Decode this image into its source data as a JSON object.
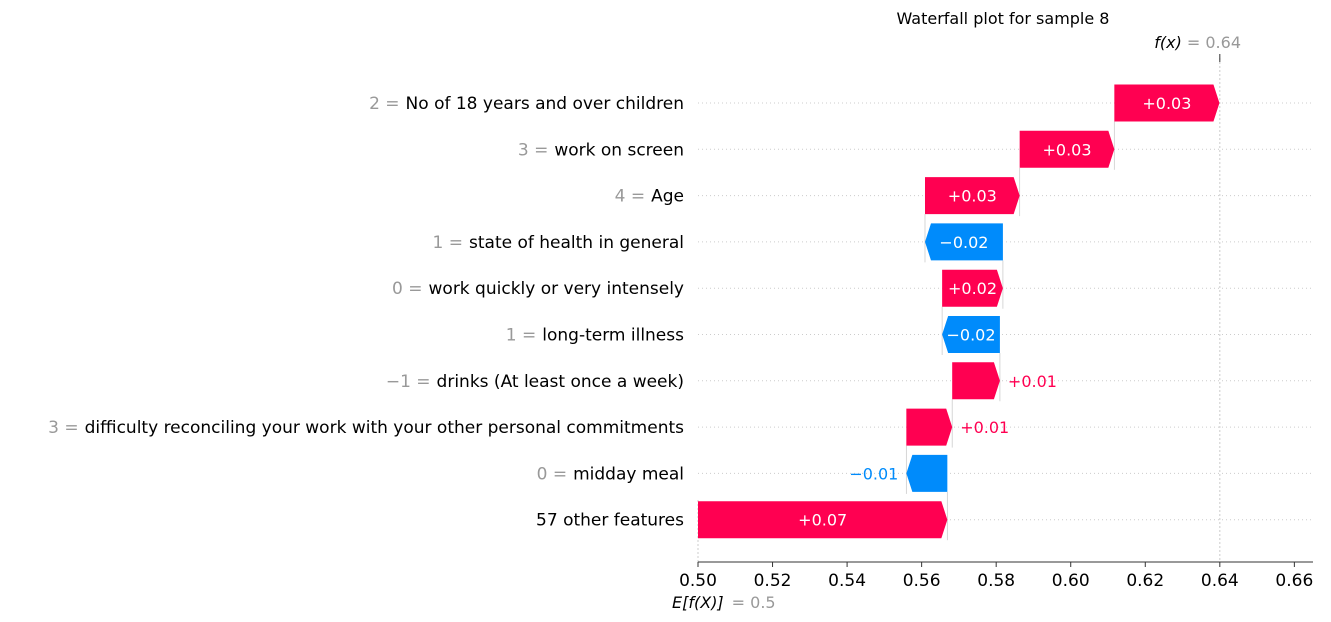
{
  "chart_data": {
    "type": "waterfall",
    "title": "Waterfall plot for sample 8",
    "base_value": 0.5,
    "base_label_prefix": "E[f(X)]",
    "base_value_text": "= 0.5",
    "final_value": 0.64,
    "final_label_prefix": "f(x)",
    "final_value_text": "= 0.64",
    "xlim": [
      0.5,
      0.665
    ],
    "xticks": [
      0.5,
      0.52,
      0.54,
      0.56,
      0.58,
      0.6,
      0.62,
      0.64,
      0.66
    ],
    "xtick_labels": [
      "0.50",
      "0.52",
      "0.54",
      "0.56",
      "0.58",
      "0.60",
      "0.62",
      "0.64",
      "0.66"
    ],
    "colors": {
      "positive": "#ff0051",
      "negative": "#008bfb",
      "grid": "#cccccc",
      "muted": "#999999"
    },
    "features": [
      {
        "value_text": "2 =",
        "name": "No of 18 years and over children",
        "start": 0.6117,
        "end": 0.6399,
        "label": "+0.03",
        "label_inside": true
      },
      {
        "value_text": "3 =",
        "name": "work on screen",
        "start": 0.5863,
        "end": 0.6117,
        "label": "+0.03",
        "label_inside": true
      },
      {
        "value_text": "4 =",
        "name": "Age",
        "start": 0.5609,
        "end": 0.5863,
        "label": "+0.03",
        "label_inside": true
      },
      {
        "value_text": "1 =",
        "name": "state of health in general",
        "start": 0.5818,
        "end": 0.5609,
        "label": "−0.02",
        "label_inside": true
      },
      {
        "value_text": "0 =",
        "name": "work quickly or very intensely",
        "start": 0.5655,
        "end": 0.5818,
        "label": "+0.02",
        "label_inside": true
      },
      {
        "value_text": "1 =",
        "name": "long-term illness",
        "start": 0.581,
        "end": 0.5655,
        "label": "−0.02",
        "label_inside": true
      },
      {
        "value_text": "−1 =",
        "name": "drinks (At least once a week)",
        "start": 0.5682,
        "end": 0.581,
        "label": "+0.01",
        "label_inside": false
      },
      {
        "value_text": "3 =",
        "name": "difficulty reconciling your work with your other personal commitments",
        "start": 0.5559,
        "end": 0.5682,
        "label": "+0.01",
        "label_inside": false
      },
      {
        "value_text": "0 =",
        "name": "midday meal",
        "start": 0.5669,
        "end": 0.5559,
        "label": "−0.01",
        "label_inside": false
      },
      {
        "value_text": "",
        "name": "57 other features",
        "start": 0.5,
        "end": 0.5669,
        "label": "+0.07",
        "label_inside": true
      }
    ]
  }
}
